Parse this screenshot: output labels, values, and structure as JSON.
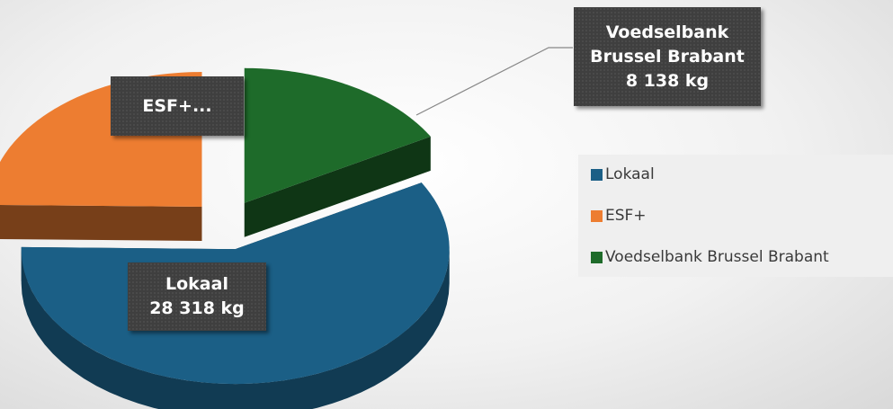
{
  "chart_data": {
    "type": "pie3d",
    "categories": [
      "Lokaal",
      "ESF+",
      "Voedselbank Brussel Brabant"
    ],
    "values": [
      28318,
      12000,
      8138
    ],
    "value_labels": [
      "28 318 kg",
      null,
      "8 138 kg"
    ],
    "data_labels": [
      "Lokaal",
      "ESF+...",
      "Voedselbank Brussel Brabant"
    ],
    "colors": [
      "#1b5f86",
      "#ed7d31",
      "#1e6b2a"
    ],
    "legend": "right"
  }
}
